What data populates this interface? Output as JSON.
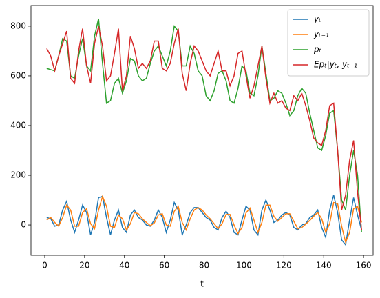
{
  "chart_data": {
    "type": "line",
    "xlabel": "t",
    "x": [
      1,
      3,
      5,
      7,
      9,
      11,
      13,
      15,
      17,
      19,
      21,
      23,
      25,
      27,
      29,
      31,
      33,
      35,
      37,
      39,
      41,
      43,
      45,
      47,
      49,
      51,
      53,
      55,
      57,
      59,
      61,
      63,
      65,
      67,
      69,
      71,
      73,
      75,
      77,
      79,
      81,
      83,
      85,
      87,
      89,
      91,
      93,
      95,
      97,
      99,
      101,
      103,
      105,
      107,
      109,
      111,
      113,
      115,
      117,
      119,
      121,
      123,
      125,
      127,
      129,
      131,
      133,
      135,
      137,
      139,
      141,
      143,
      145,
      147,
      149,
      151,
      153,
      155,
      157,
      159
    ],
    "series": [
      {
        "name": "yₜ",
        "color": "#1f77b4",
        "values": [
          30,
          25,
          -5,
          0,
          60,
          95,
          20,
          -30,
          20,
          80,
          50,
          -40,
          10,
          110,
          115,
          30,
          -40,
          20,
          60,
          -10,
          -30,
          40,
          60,
          30,
          20,
          0,
          -5,
          20,
          60,
          30,
          -30,
          20,
          90,
          60,
          -40,
          0,
          50,
          70,
          70,
          50,
          30,
          20,
          -10,
          -20,
          30,
          55,
          30,
          -30,
          -40,
          20,
          75,
          60,
          -20,
          -40,
          60,
          100,
          60,
          10,
          20,
          40,
          50,
          40,
          -10,
          -20,
          0,
          5,
          30,
          40,
          60,
          -10,
          -50,
          60,
          120,
          50,
          -60,
          -80,
          20,
          110,
          40,
          -20
        ]
      },
      {
        "name": "yₜ₋₁",
        "color": "#ff7f0e",
        "values": [
          20,
          30,
          10,
          -5,
          30,
          80,
          60,
          -5,
          -5,
          50,
          65,
          5,
          -15,
          60,
          115,
          75,
          -5,
          -10,
          40,
          25,
          -20,
          5,
          50,
          45,
          25,
          10,
          -3,
          8,
          40,
          45,
          0,
          -5,
          55,
          75,
          10,
          -20,
          25,
          60,
          70,
          60,
          40,
          25,
          5,
          -15,
          5,
          42,
          42,
          0,
          -35,
          -10,
          48,
          68,
          20,
          -30,
          10,
          80,
          80,
          35,
          15,
          30,
          45,
          45,
          15,
          -15,
          -10,
          3,
          18,
          35,
          50,
          25,
          -30,
          5,
          90,
          85,
          -5,
          -70,
          -30,
          65,
          75,
          10
        ]
      },
      {
        "name": "pₜ",
        "color": "#2ca02c",
        "values": [
          630,
          625,
          620,
          680,
          750,
          740,
          600,
          590,
          680,
          750,
          640,
          620,
          760,
          830,
          650,
          490,
          500,
          570,
          590,
          530,
          580,
          670,
          660,
          600,
          580,
          590,
          650,
          700,
          720,
          680,
          640,
          700,
          800,
          780,
          640,
          640,
          720,
          690,
          620,
          600,
          520,
          500,
          540,
          610,
          620,
          580,
          500,
          490,
          550,
          640,
          620,
          530,
          520,
          600,
          720,
          610,
          500,
          510,
          540,
          530,
          490,
          440,
          460,
          520,
          550,
          530,
          450,
          380,
          310,
          300,
          360,
          450,
          460,
          300,
          100,
          60,
          200,
          300,
          200,
          -30
        ]
      },
      {
        "name": "Epₜ|yₜ, yₜ₋₁",
        "color": "#d62728",
        "values": [
          710,
          680,
          620,
          680,
          730,
          780,
          590,
          570,
          700,
          790,
          640,
          570,
          730,
          800,
          720,
          580,
          600,
          690,
          790,
          540,
          600,
          760,
          710,
          630,
          650,
          630,
          660,
          740,
          740,
          630,
          620,
          650,
          730,
          790,
          610,
          540,
          650,
          720,
          700,
          660,
          620,
          600,
          650,
          700,
          620,
          620,
          560,
          600,
          690,
          700,
          600,
          510,
          560,
          640,
          720,
          590,
          490,
          530,
          490,
          500,
          470,
          460,
          520,
          500,
          530,
          480,
          420,
          350,
          330,
          320,
          380,
          480,
          490,
          300,
          60,
          120,
          260,
          340,
          130,
          -20
        ]
      }
    ],
    "xlim": [
      -6.9,
      164.8
    ],
    "ylim": [
      -122,
      883
    ],
    "xticks": [
      0,
      20,
      40,
      60,
      80,
      100,
      120,
      140,
      160
    ],
    "yticks": [
      0,
      200,
      400,
      600,
      800
    ],
    "legend": "upper right"
  }
}
